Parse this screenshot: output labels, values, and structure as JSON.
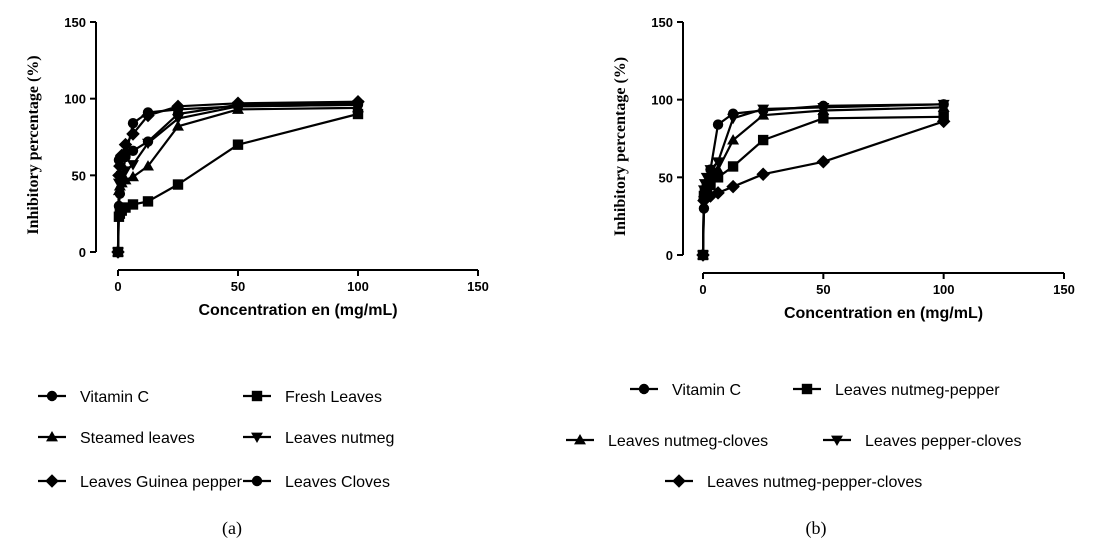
{
  "chart_data": [
    {
      "type": "line",
      "panel_label": "(a)",
      "xlabel": "Concentration en (mg/mL)",
      "ylabel": "Inhibitory percentage (%)",
      "xlim": [
        0,
        150
      ],
      "ylim": [
        0,
        150
      ],
      "xticks": [
        0,
        50,
        100,
        150
      ],
      "yticks": [
        0,
        50,
        100,
        150
      ],
      "grid": false,
      "legend_position": "bottom",
      "series": [
        {
          "name": "Vitamin C",
          "marker": "circle",
          "x": [
            0,
            0.39,
            0.78,
            1.56,
            3.12,
            6.25,
            12.5,
            25,
            50,
            100
          ],
          "y": [
            0,
            30,
            38,
            46,
            62,
            84,
            91,
            93,
            95,
            96
          ]
        },
        {
          "name": "Fresh Leaves",
          "marker": "square",
          "x": [
            0,
            0.39,
            0.78,
            1.56,
            3.12,
            6.25,
            12.5,
            25,
            50,
            100
          ],
          "y": [
            0,
            23,
            25,
            27,
            29,
            31,
            33,
            44,
            70,
            90
          ]
        },
        {
          "name": "Steamed leaves",
          "marker": "triangle-up",
          "x": [
            0,
            0.39,
            0.78,
            1.56,
            3.12,
            6.25,
            12.5,
            25,
            50,
            100
          ],
          "y": [
            0,
            40,
            43,
            45,
            47,
            49,
            56,
            82,
            93,
            94
          ]
        },
        {
          "name": "Leaves nutmeg",
          "marker": "triangle-down",
          "x": [
            0,
            0.39,
            0.78,
            1.56,
            3.12,
            6.25,
            12.5,
            25,
            50,
            100
          ],
          "y": [
            0,
            45,
            47,
            50,
            53,
            57,
            71,
            87,
            95,
            96
          ]
        },
        {
          "name": "Leaves Guinea pepper",
          "marker": "diamond",
          "x": [
            0,
            0.39,
            0.78,
            1.56,
            3.12,
            6.25,
            12.5,
            25,
            50,
            100
          ],
          "y": [
            0,
            50,
            56,
            63,
            70,
            77,
            89,
            95,
            97,
            98
          ]
        },
        {
          "name": "Leaves Cloves",
          "marker": "circle",
          "x": [
            0,
            0.39,
            0.78,
            1.56,
            3.12,
            6.25,
            12.5,
            25,
            50,
            100
          ],
          "y": [
            0,
            60,
            61,
            62,
            64,
            66,
            72,
            90,
            96,
            97
          ]
        }
      ]
    },
    {
      "type": "line",
      "panel_label": "(b)",
      "xlabel": "Concentration en (mg/mL)",
      "ylabel": "Inhibitory percentage (%)",
      "xlim": [
        0,
        150
      ],
      "ylim": [
        0,
        150
      ],
      "xticks": [
        0,
        50,
        100,
        150
      ],
      "yticks": [
        0,
        50,
        100,
        150
      ],
      "grid": false,
      "legend_position": "bottom",
      "series": [
        {
          "name": "Vitamin C",
          "marker": "circle",
          "x": [
            0,
            0.39,
            0.78,
            1.56,
            3.12,
            6.25,
            12.5,
            25,
            50,
            100
          ],
          "y": [
            0,
            30,
            38,
            46,
            55,
            84,
            91,
            93,
            96,
            97
          ]
        },
        {
          "name": "Leaves nutmeg-pepper",
          "marker": "square",
          "x": [
            0,
            0.39,
            0.78,
            1.56,
            3.12,
            6.25,
            12.5,
            25,
            50,
            100
          ],
          "y": [
            0,
            38,
            40,
            42,
            45,
            50,
            57,
            74,
            88,
            89
          ]
        },
        {
          "name": "Leaves nutmeg-cloves",
          "marker": "triangle-up",
          "x": [
            0,
            0.39,
            0.78,
            1.56,
            3.12,
            6.25,
            12.5,
            25,
            50,
            100
          ],
          "y": [
            0,
            40,
            43,
            46,
            50,
            55,
            74,
            90,
            93,
            95
          ]
        },
        {
          "name": "Leaves pepper-cloves",
          "marker": "triangle-down",
          "x": [
            0,
            0.39,
            0.78,
            1.56,
            3.12,
            6.25,
            12.5,
            25,
            50,
            100
          ],
          "y": [
            0,
            42,
            46,
            50,
            55,
            60,
            88,
            94,
            95,
            97
          ]
        },
        {
          "name": "Leaves nutmeg-pepper-cloves",
          "marker": "diamond",
          "x": [
            0,
            0.39,
            0.78,
            1.56,
            3.12,
            6.25,
            12.5,
            25,
            50,
            100
          ],
          "y": [
            0,
            35,
            36,
            37,
            38,
            40,
            44,
            52,
            60,
            86
          ]
        }
      ]
    }
  ]
}
